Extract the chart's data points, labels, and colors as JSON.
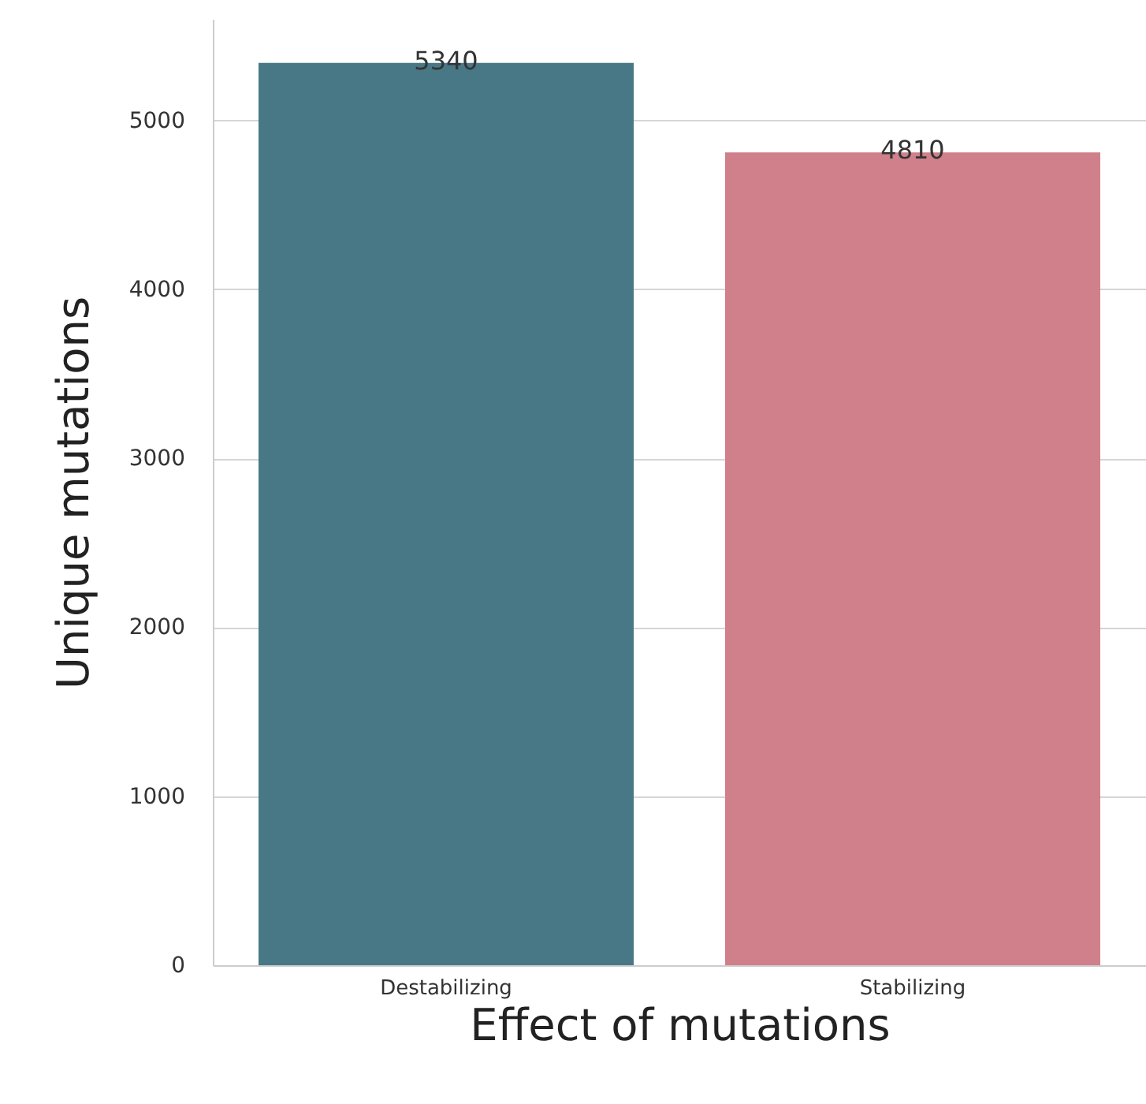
{
  "chart_data": {
    "type": "bar",
    "categories": [
      "Destabilizing",
      "Stabilizing"
    ],
    "values": [
      5340,
      4810
    ],
    "colors": [
      "#487886",
      "#d0808a"
    ],
    "xlabel": "Effect of mutations",
    "ylabel": "Unique mutations",
    "ylim": [
      0,
      5600
    ],
    "yticks": [
      0,
      1000,
      2000,
      3000,
      4000,
      5000
    ],
    "grid": "y",
    "data_labels": true
  }
}
